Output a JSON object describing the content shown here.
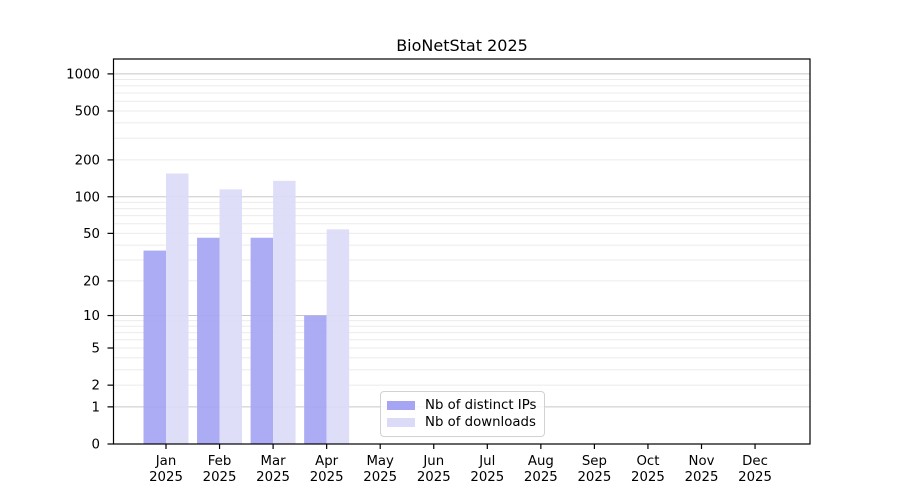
{
  "chart_data": {
    "type": "bar",
    "title": "BioNetStat 2025",
    "year_label": "2025",
    "categories": [
      "Jan",
      "Feb",
      "Mar",
      "Apr",
      "May",
      "Jun",
      "Jul",
      "Aug",
      "Sep",
      "Oct",
      "Nov",
      "Dec"
    ],
    "series": [
      {
        "name": "Nb of distinct IPs",
        "color": "#a5a5f3",
        "values": [
          36,
          46,
          46,
          10,
          0,
          0,
          0,
          0,
          0,
          0,
          0,
          0
        ]
      },
      {
        "name": "Nb of downloads",
        "color": "#dbdbf8",
        "values": [
          155,
          115,
          135,
          54,
          0,
          0,
          0,
          0,
          0,
          0,
          0,
          0
        ]
      }
    ],
    "y_scale": "log1p",
    "y_ticks": [
      0,
      1,
      2,
      5,
      10,
      20,
      50,
      100,
      200,
      500,
      1000
    ],
    "ylim": [
      0,
      1320
    ],
    "xlabel": "",
    "ylabel": "",
    "grid": true,
    "legend_position": "inside bottom-center",
    "colors": {
      "major_grid": "#c8c8c8",
      "minor_grid": "#ebebeb",
      "axis": "#000000",
      "text": "#000000",
      "background": "#ffffff"
    }
  }
}
